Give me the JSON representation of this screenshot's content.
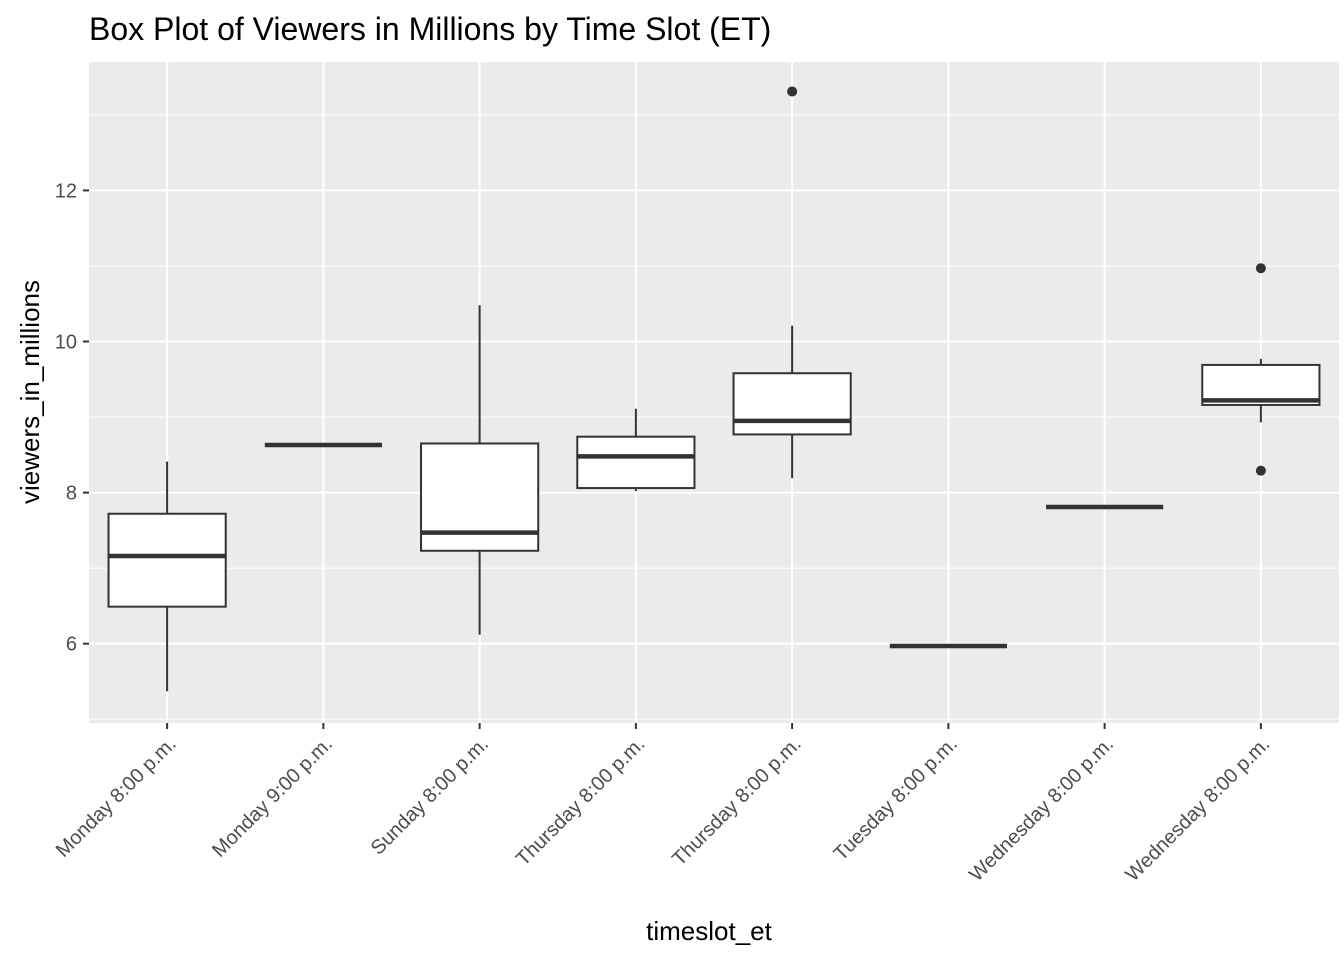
{
  "chart_data": {
    "type": "box",
    "title": "Box Plot of Viewers in Millions by Time Slot (ET)",
    "xlabel": "timeslot_et",
    "ylabel": "viewers_in_millions",
    "ylim": [
      4.95,
      13.7
    ],
    "yticks": [
      6,
      8,
      10,
      12
    ],
    "grid": true,
    "legend": "none",
    "colors": {
      "panel": "#ebebeb",
      "grid": "#ffffff",
      "box_stroke": "#333333",
      "box_fill": "#ffffff",
      "tick_text": "#4d4d4d"
    },
    "categories": [
      "Monday 8:00 p.m.",
      "Monday 9:00 p.m.",
      "Sunday 8:00 p.m.",
      "Thursday  8:00 p.m.",
      "Thursday 8:00 p.m.",
      "Tuesday 8:00 p.m.",
      "Wednesday 8:00 p.m.",
      "Wednesday 8:00 p.m."
    ],
    "boxes": [
      {
        "category": "Monday 8:00 p.m.",
        "min": 5.37,
        "q1": 6.49,
        "median": 7.16,
        "q3": 7.72,
        "max": 8.41,
        "outliers": []
      },
      {
        "category": "Monday 9:00 p.m.",
        "min": 8.63,
        "q1": 8.63,
        "median": 8.63,
        "q3": 8.63,
        "max": 8.63,
        "outliers": []
      },
      {
        "category": "Sunday 8:00 p.m.",
        "min": 6.12,
        "q1": 7.23,
        "median": 7.47,
        "q3": 8.65,
        "max": 10.48,
        "outliers": []
      },
      {
        "category": "Thursday  8:00 p.m.",
        "min": 8.02,
        "q1": 8.06,
        "median": 8.48,
        "q3": 8.74,
        "max": 9.11,
        "outliers": []
      },
      {
        "category": "Thursday 8:00 p.m.",
        "min": 8.19,
        "q1": 8.77,
        "median": 8.95,
        "q3": 9.58,
        "max": 10.21,
        "outliers": [
          13.31
        ]
      },
      {
        "category": "Tuesday 8:00 p.m.",
        "min": 5.97,
        "q1": 5.97,
        "median": 5.97,
        "q3": 5.97,
        "max": 5.97,
        "outliers": []
      },
      {
        "category": "Wednesday 8:00 p.m.",
        "min": 7.81,
        "q1": 7.81,
        "median": 7.81,
        "q3": 7.81,
        "max": 7.81,
        "outliers": []
      },
      {
        "category": "Wednesday 8:00 p.m.",
        "min": 8.93,
        "q1": 9.16,
        "median": 9.22,
        "q3": 9.69,
        "max": 9.77,
        "outliers": [
          10.97,
          8.29
        ]
      }
    ]
  }
}
